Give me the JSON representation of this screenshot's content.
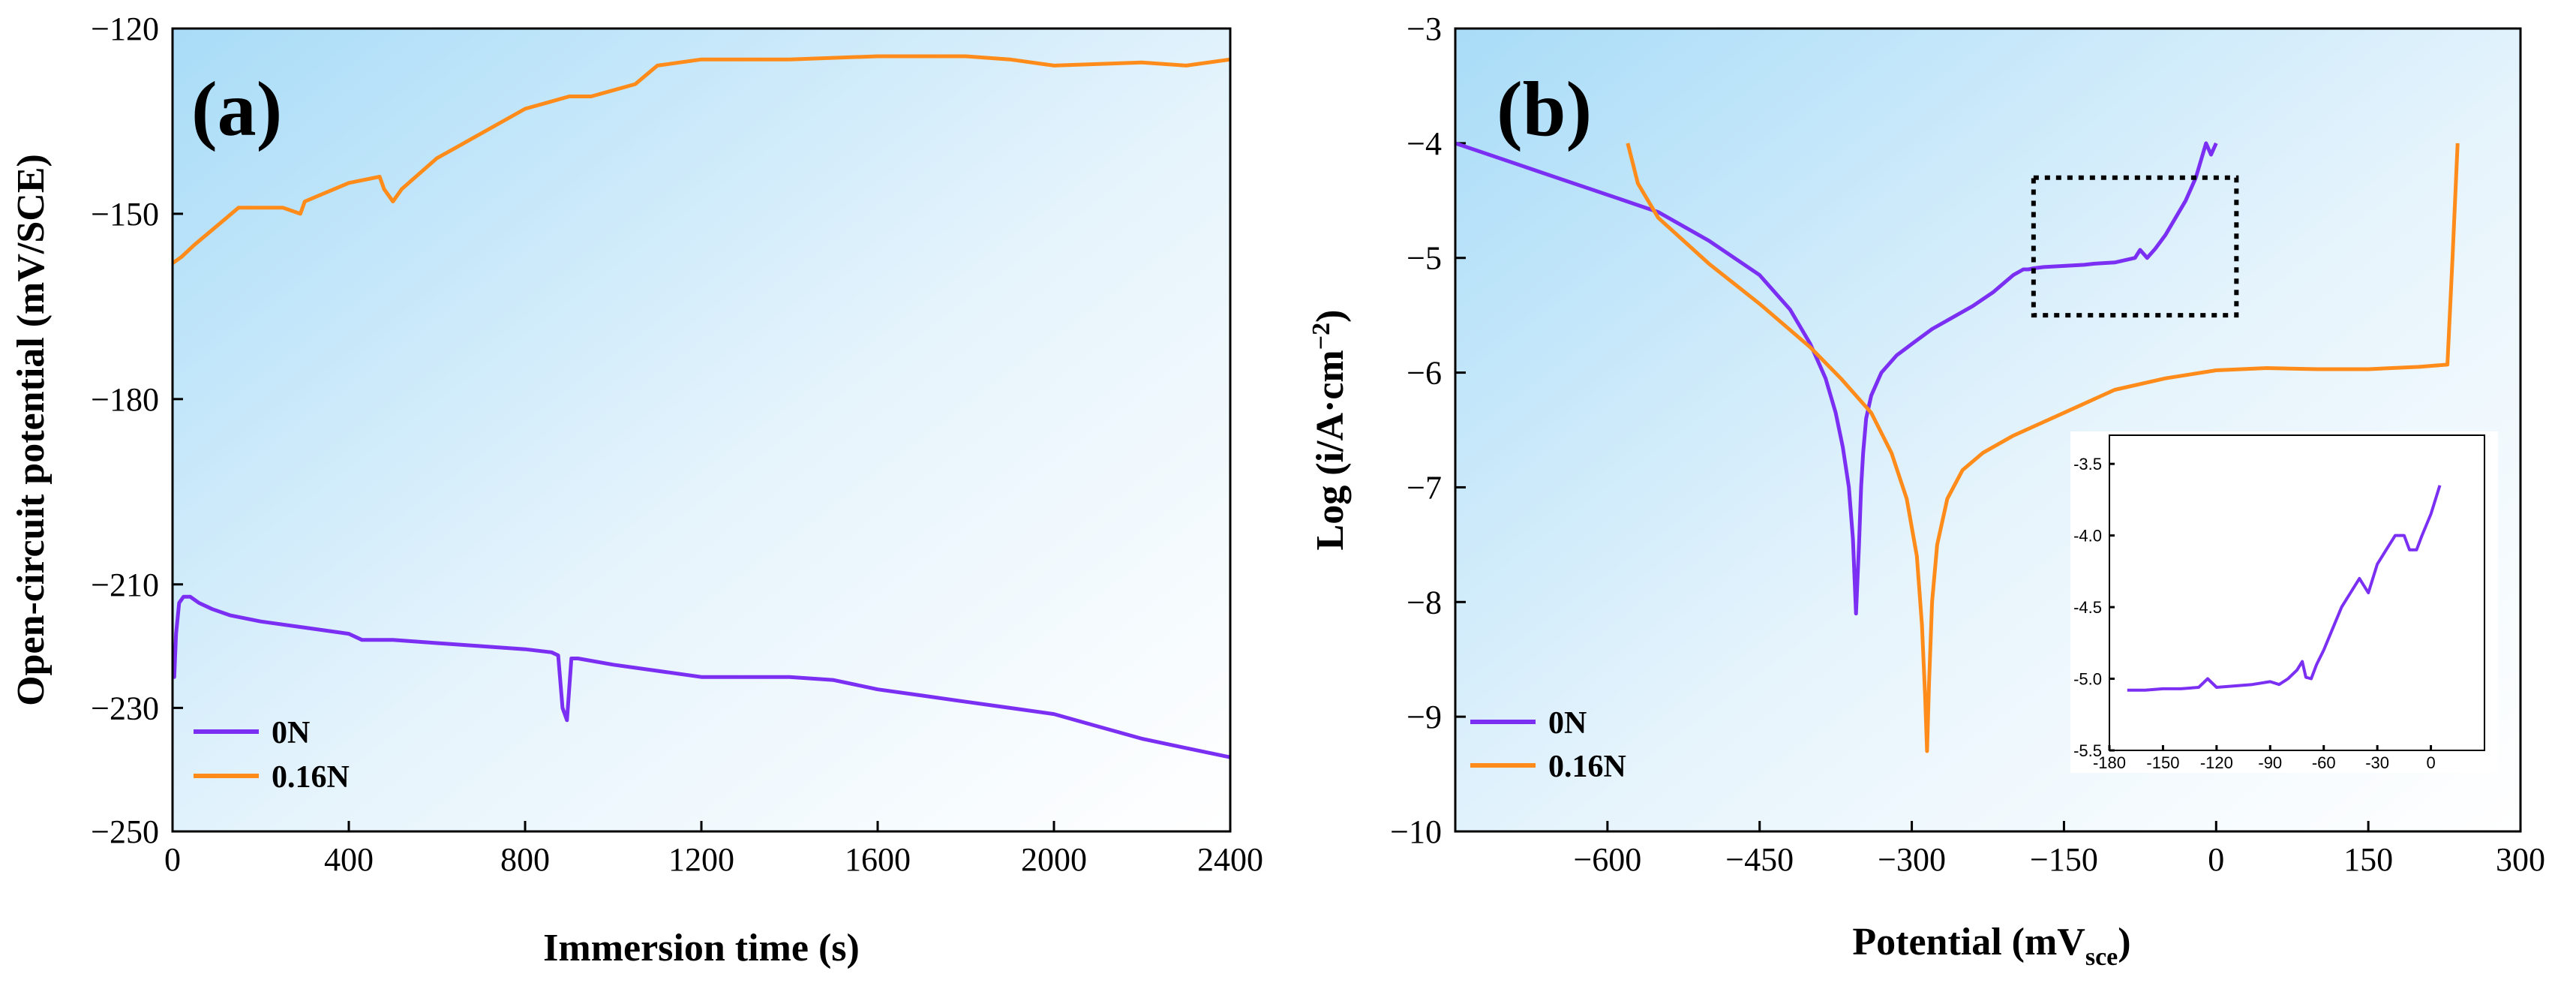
{
  "colors": {
    "series_0N": "#7b2ff2",
    "series_016N": "#ff8c1a"
  },
  "chart_data": [
    {
      "type": "line",
      "panel_label": "(a)",
      "xlabel": "Immersion time (s)",
      "ylabel": "Open-circuit potential (mV/SCE)",
      "xlim": [
        0,
        2400
      ],
      "ylim": [
        -250,
        -120
      ],
      "xticks": [
        0,
        400,
        800,
        1200,
        1600,
        2000,
        2400
      ],
      "yticks": [
        -250,
        -230,
        -210,
        -180,
        -150,
        -120
      ],
      "xtick_labels": [
        "0",
        "400",
        "800",
        "1200",
        "1600",
        "2000",
        "2400"
      ],
      "ytick_labels": [
        "−250",
        "−230",
        "−210",
        "−180",
        "−150",
        "−120"
      ],
      "legend": [
        "0N",
        "0.16N"
      ],
      "series": [
        {
          "name": "0N",
          "x": [
            0,
            4,
            8,
            15,
            25,
            40,
            60,
            90,
            130,
            200,
            300,
            400,
            430,
            500,
            600,
            700,
            800,
            860,
            875,
            885,
            895,
            905,
            920,
            1000,
            1100,
            1200,
            1300,
            1400,
            1500,
            1600,
            1700,
            1800,
            1900,
            2000,
            2100,
            2200,
            2300,
            2400
          ],
          "y": [
            -220,
            -225,
            -218,
            -213,
            -212,
            -212,
            -213,
            -214,
            -215,
            -216,
            -217,
            -218,
            -219,
            -219,
            -219.5,
            -220,
            -220.5,
            -221,
            -221.5,
            -230,
            -232,
            -222,
            -222,
            -223,
            -224,
            -225,
            -225,
            -225,
            -225.5,
            -227,
            -228,
            -229,
            -230,
            -231,
            -233,
            -235,
            -236.5,
            -238
          ]
        },
        {
          "name": "0.16N",
          "x": [
            0,
            20,
            50,
            100,
            150,
            200,
            250,
            290,
            300,
            400,
            470,
            480,
            500,
            520,
            600,
            650,
            700,
            750,
            800,
            850,
            900,
            950,
            1000,
            1050,
            1100,
            1200,
            1400,
            1600,
            1700,
            1800,
            1900,
            2000,
            2200,
            2300,
            2400
          ],
          "y": [
            -158,
            -157,
            -155,
            -152,
            -149,
            -149,
            -149,
            -150,
            -148,
            -145,
            -144,
            -146,
            -148,
            -146,
            -141,
            -139,
            -137,
            -135,
            -133,
            -132,
            -131,
            -131,
            -130,
            -129,
            -126,
            -125,
            -125,
            -124.5,
            -124.5,
            -124.5,
            -125,
            -126,
            -125.5,
            -126,
            -125
          ]
        }
      ]
    },
    {
      "type": "line",
      "panel_label": "(b)",
      "xlabel": "Potential (mV",
      "xlabel_subscript": "sce",
      "ylabel": "Log (i/A·cm",
      "ylabel_superscript": "−2",
      "ylabel_end": ")",
      "xlim": [
        -750,
        300
      ],
      "ylim": [
        -10,
        -3
      ],
      "xticks": [
        -600,
        -450,
        -300,
        -150,
        0,
        150,
        300
      ],
      "yticks": [
        -10,
        -9,
        -8,
        -7,
        -6,
        -5,
        -4,
        -3
      ],
      "xtick_labels": [
        "−600",
        "−450",
        "−300",
        "−150",
        "0",
        "150",
        "300"
      ],
      "ytick_labels": [
        "−10",
        "−9",
        "−8",
        "−7",
        "−6",
        "−5",
        "−4",
        "−3"
      ],
      "legend": [
        "0N",
        "0.16N"
      ],
      "highlight_box": {
        "x": [
          -180,
          20
        ],
        "y": [
          -5.5,
          -4.3
        ]
      },
      "series": [
        {
          "name": "0N",
          "x": [
            -750,
            -700,
            -650,
            -600,
            -550,
            -500,
            -450,
            -420,
            -400,
            -385,
            -375,
            -368,
            -362,
            -358,
            -355,
            -352,
            -350,
            -348,
            -345,
            -340,
            -330,
            -315,
            -300,
            -280,
            -260,
            -240,
            -220,
            -200,
            -190,
            -185,
            -180,
            -170,
            -150,
            -130,
            -120,
            -100,
            -80,
            -75,
            -68,
            -60,
            -50,
            -40,
            -30,
            -20,
            -15,
            -10,
            -5,
            0
          ],
          "y": [
            -4.0,
            -4.15,
            -4.3,
            -4.45,
            -4.6,
            -4.85,
            -5.15,
            -5.45,
            -5.75,
            -6.05,
            -6.35,
            -6.65,
            -7.0,
            -7.45,
            -8.1,
            -7.5,
            -7.0,
            -6.7,
            -6.4,
            -6.2,
            -6.0,
            -5.85,
            -5.75,
            -5.62,
            -5.52,
            -5.42,
            -5.3,
            -5.15,
            -5.1,
            -5.1,
            -5.09,
            -5.08,
            -5.07,
            -5.06,
            -5.05,
            -5.04,
            -5.0,
            -4.93,
            -5.0,
            -4.92,
            -4.8,
            -4.65,
            -4.5,
            -4.3,
            -4.15,
            -4.0,
            -4.1,
            -4.0
          ]
        },
        {
          "name": "0.16N",
          "x": [
            -580,
            -570,
            -550,
            -500,
            -450,
            -400,
            -370,
            -340,
            -320,
            -305,
            -295,
            -290,
            -287,
            -285,
            -283,
            -280,
            -275,
            -265,
            -250,
            -230,
            -200,
            -150,
            -100,
            -50,
            0,
            50,
            100,
            150,
            200,
            228,
            233,
            238
          ],
          "y": [
            -4.0,
            -4.35,
            -4.65,
            -5.05,
            -5.4,
            -5.78,
            -6.05,
            -6.35,
            -6.7,
            -7.1,
            -7.6,
            -8.2,
            -8.8,
            -9.3,
            -8.7,
            -8.0,
            -7.5,
            -7.1,
            -6.85,
            -6.7,
            -6.55,
            -6.35,
            -6.15,
            -6.05,
            -5.98,
            -5.96,
            -5.97,
            -5.97,
            -5.95,
            -5.93,
            -5.0,
            -4.0
          ]
        }
      ],
      "inset": {
        "xlim": [
          -180,
          30
        ],
        "ylim": [
          -5.5,
          -3.3
        ],
        "xticks": [
          -180,
          -150,
          -120,
          -90,
          -60,
          -30,
          0
        ],
        "yticks": [
          -5.5,
          -5.0,
          -4.5,
          -4.0,
          -3.5
        ],
        "xtick_labels": [
          "-180",
          "-150",
          "-120",
          "-90",
          "-60",
          "-30",
          "0"
        ],
        "ytick_labels": [
          "-5.5",
          "-5.0",
          "-4.5",
          "-4.0",
          "-3.5"
        ],
        "series": [
          {
            "name": "0N",
            "x": [
              -170,
              -160,
              -150,
              -140,
              -130,
              -125,
              -120,
              -110,
              -100,
              -90,
              -85,
              -80,
              -75,
              -72,
              -70,
              -67,
              -64,
              -60,
              -55,
              -50,
              -45,
              -40,
              -35,
              -30,
              -25,
              -20,
              -15,
              -12,
              -8,
              -5,
              0,
              5
            ],
            "y": [
              -5.08,
              -5.08,
              -5.07,
              -5.07,
              -5.06,
              -5.0,
              -5.06,
              -5.05,
              -5.04,
              -5.02,
              -5.04,
              -5.0,
              -4.94,
              -4.88,
              -4.99,
              -5.0,
              -4.9,
              -4.8,
              -4.65,
              -4.5,
              -4.4,
              -4.3,
              -4.4,
              -4.2,
              -4.1,
              -4.0,
              -4.0,
              -4.1,
              -4.1,
              -4.0,
              -3.85,
              -3.65
            ]
          }
        ]
      }
    }
  ]
}
